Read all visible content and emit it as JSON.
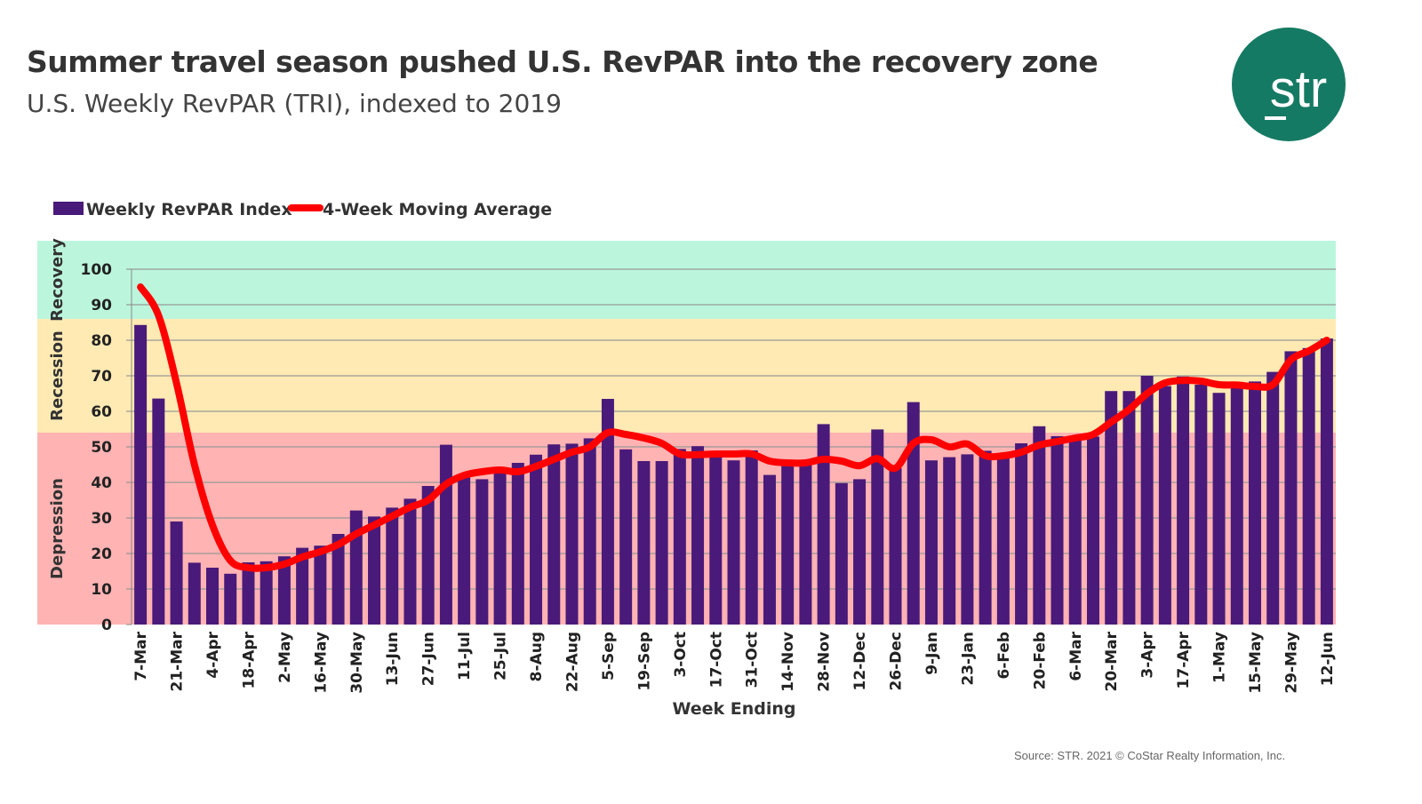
{
  "header": {
    "title": "Summer travel season pushed U.S. RevPAR into the recovery zone",
    "subtitle": "U.S. Weekly RevPAR (TRI), indexed to 2019",
    "logo_text": "str",
    "logo_color": "#157a64"
  },
  "footer": {
    "source": "Source: STR. 2021 © CoStar Realty Information, Inc."
  },
  "chart_data": {
    "type": "bar",
    "title": "U.S. Weekly RevPAR (TRI), indexed to 2019",
    "xlabel": "Week Ending",
    "ylabel": "",
    "ylim": [
      0,
      100
    ],
    "yticks": [
      0,
      10,
      20,
      30,
      40,
      50,
      60,
      70,
      80,
      90,
      100
    ],
    "grid": true,
    "legend_position": "top-left",
    "tick_labels": [
      "7-Mar",
      "21-Mar",
      "4-Apr",
      "18-Apr",
      "2-May",
      "16-May",
      "30-May",
      "13-Jun",
      "27-Jun",
      "11-Jul",
      "25-Jul",
      "8-Aug",
      "22-Aug",
      "5-Sep",
      "19-Sep",
      "3-Oct",
      "17-Oct",
      "31-Oct",
      "14-Nov",
      "28-Nov",
      "12-Dec",
      "26-Dec",
      "9-Jan",
      "23-Jan",
      "6-Feb",
      "20-Feb",
      "6-Mar",
      "20-Mar",
      "3-Apr",
      "17-Apr",
      "1-May",
      "15-May",
      "29-May",
      "12-Jun"
    ],
    "zones": [
      {
        "name": "Depression",
        "from": 0,
        "to": 54,
        "color": "#ffb3b3"
      },
      {
        "name": "Recession",
        "from": 54,
        "to": 86,
        "color": "#ffeab3"
      },
      {
        "name": "Recovery",
        "from": 86,
        "to": 108,
        "color": "#bbf6dc"
      }
    ],
    "series": [
      {
        "name": "Weekly RevPAR Index",
        "kind": "bar",
        "color": "#4a1a7a",
        "values": [
          84.3,
          63.6,
          29.0,
          17.4,
          16.0,
          14.3,
          17.5,
          17.8,
          19.2,
          21.6,
          22.2,
          25.5,
          32.1,
          30.4,
          32.9,
          35.4,
          39.0,
          50.6,
          42.1,
          40.9,
          44.1,
          45.5,
          47.8,
          50.7,
          50.9,
          52.4,
          63.5,
          49.3,
          46.0,
          46.0,
          49.4,
          50.2,
          47.2,
          46.2,
          49.0,
          42.1,
          45.0,
          45.0,
          56.4,
          39.8,
          40.9,
          54.9,
          44.0,
          62.6,
          46.2,
          47.1,
          47.9,
          48.9,
          47.5,
          51.0,
          55.8,
          53.0,
          52.0,
          52.9,
          65.7,
          65.7,
          70.0,
          67.1,
          69.8,
          67.5,
          65.2,
          66.7,
          68.4,
          71.1,
          76.9,
          77.8,
          80.5
        ]
      },
      {
        "name": "4-Week Moving Average",
        "kind": "line",
        "color": "#ff0000",
        "values": [
          95,
          87,
          68,
          45,
          28,
          18,
          16,
          16,
          17,
          19,
          20.5,
          22.5,
          25.5,
          28,
          30.5,
          33,
          35,
          39.5,
          42,
          43,
          43.5,
          43,
          44.5,
          46.5,
          48.5,
          50,
          54,
          53.5,
          52.5,
          51,
          48,
          47.8,
          48,
          48,
          48,
          46,
          45.5,
          45.5,
          46.5,
          46,
          44.7,
          46.7,
          44,
          51,
          52,
          50,
          50.8,
          47.5,
          47.5,
          48.5,
          50.5,
          51.5,
          52.5,
          53.5,
          57,
          60.5,
          65,
          68,
          68.7,
          68.5,
          67.5,
          67.4,
          67,
          67.5,
          74.5,
          77,
          80
        ]
      }
    ]
  }
}
